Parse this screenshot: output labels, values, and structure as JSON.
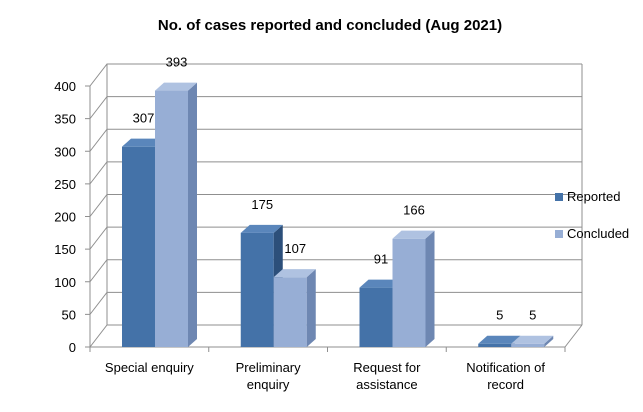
{
  "chart_data": {
    "type": "bar",
    "title": "No. of cases reported and concluded (Aug 2021)",
    "categories": [
      [
        "Special enquiry"
      ],
      [
        "Preliminary",
        "enquiry"
      ],
      [
        "Request for",
        "assistance"
      ],
      [
        "Notification of",
        "record"
      ]
    ],
    "series": [
      {
        "name": "Reported",
        "values": [
          307,
          175,
          91,
          5
        ]
      },
      {
        "name": "Concluded",
        "values": [
          393,
          107,
          166,
          5
        ]
      }
    ],
    "ylim": [
      0,
      400
    ],
    "yticks": [
      0,
      50,
      100,
      150,
      200,
      250,
      300,
      350,
      400
    ],
    "grid": true,
    "legend": "right",
    "style": "3d-clustered",
    "colors": {
      "series": [
        {
          "front": "#4472a8",
          "side": "#2c4f7a",
          "top": "#5a86bb"
        },
        {
          "front": "#97aed5",
          "side": "#6e87b2",
          "top": "#afc2e1"
        }
      ],
      "grid": "#8f8f8f",
      "wall": "#ffffff"
    }
  }
}
